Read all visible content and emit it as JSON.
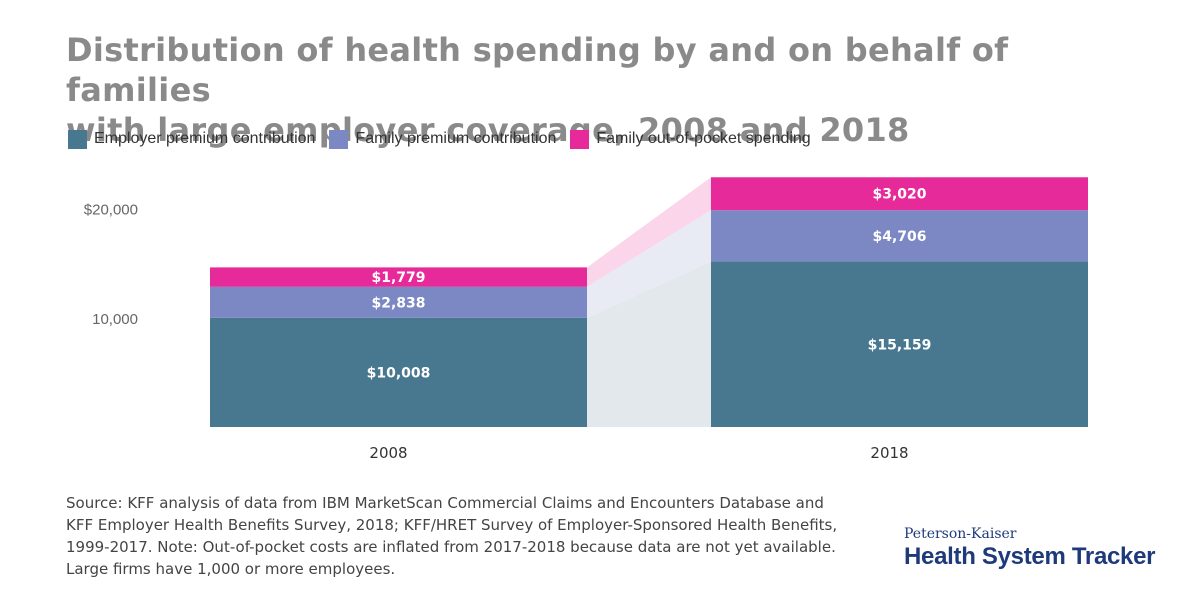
{
  "title_lines": [
    "Distribution of health spending by and on behalf of families",
    "with large employer coverage, 2008 and 2018"
  ],
  "colors": {
    "employer": "#48788f",
    "family_premium": "#7b88c3",
    "oop": "#e62a9a",
    "band_employer": "#e3e8ec",
    "band_family": "#e9ebf4",
    "band_oop": "#fbd5ea"
  },
  "chart_data": {
    "type": "bar",
    "stacked": true,
    "title": "Distribution of health spending by and on behalf of families with large employer coverage, 2008 and 2018",
    "categories": [
      "2008",
      "2018"
    ],
    "series": [
      {
        "name": "Employer premium contribution",
        "values": [
          10008,
          15159
        ],
        "labels": [
          "$10,008",
          "$15,159"
        ]
      },
      {
        "name": "Family premium contribution",
        "values": [
          2838,
          4706
        ],
        "labels": [
          "$2,838",
          "$4,706"
        ]
      },
      {
        "name": "Family out-of-pocket spending",
        "values": [
          1779,
          3020
        ],
        "labels": [
          "$1,779",
          "$3,020"
        ]
      }
    ],
    "y_ticks": [
      {
        "value": 10000,
        "label": "10,000"
      },
      {
        "value": 20000,
        "label": "$20,000"
      }
    ],
    "ylim": [
      0,
      23000
    ],
    "grid": false,
    "legend_position": "top-left",
    "xlabel": "",
    "ylabel": ""
  },
  "source_lines": [
    "Source: KFF analysis of data from IBM MarketScan Commercial Claims and Encounters Database and",
    "KFF Employer Health Benefits Survey, 2018; KFF/HRET Survey of Employer-Sponsored Health Benefits,",
    "1999-2017. Note: Out-of-pocket costs are inflated from 2017-2018 because data are not yet available.",
    "Large firms have 1,000 or more employees."
  ],
  "logo": {
    "line1": "Peterson-Kaiser",
    "line2": "Health System Tracker"
  }
}
